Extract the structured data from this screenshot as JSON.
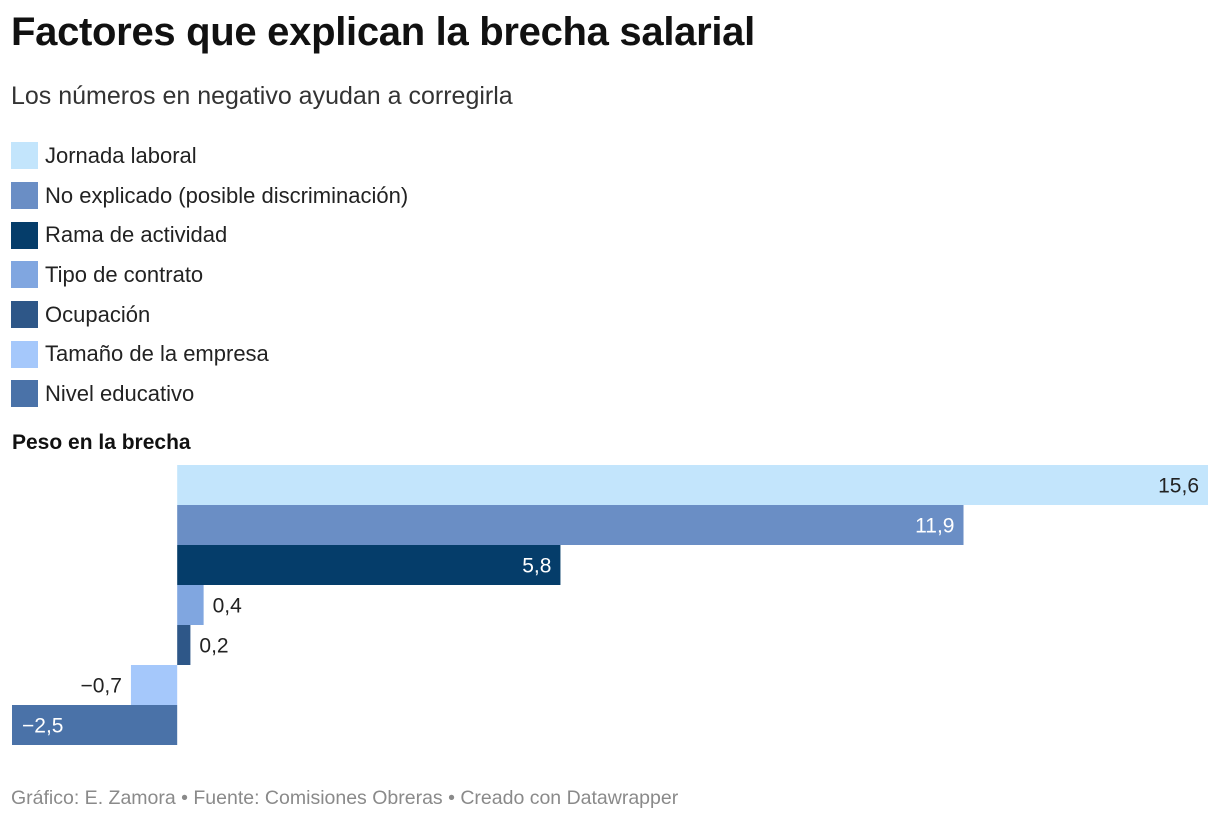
{
  "title": "Factores que explican la brecha salarial",
  "subtitle": "Los números en negativo ayudan a corregirla",
  "footer": {
    "credit": "Gráfico: E. Zamora",
    "separator": "•",
    "source": "Fuente: Comisiones Obreras",
    "created": "Creado con Datawrapper"
  },
  "chart_data": {
    "type": "bar",
    "orientation": "horizontal",
    "title": "Factores que explican la brecha salarial",
    "subtitle": "Los números en negativo ayudan a corregirla",
    "xlabel": "Peso en la brecha",
    "ylabel": "",
    "xlim": [
      -2.5,
      15.6
    ],
    "grid": false,
    "legend_position": "top-left",
    "categories": [
      "Jornada laboral",
      "No explicado (posible discriminación)",
      "Rama de actividad",
      "Tipo de contrato",
      "Ocupación",
      "Tamaño de la empresa",
      "Nivel educativo"
    ],
    "values": [
      15.6,
      11.9,
      5.8,
      0.4,
      0.2,
      -0.7,
      -2.5
    ],
    "value_labels": [
      "15,6",
      "11,9",
      "5,8",
      "0,4",
      "0,2",
      "−0,7",
      "−2,5"
    ],
    "colors": [
      "#c3e5fc",
      "#6a8ec5",
      "#053d6a",
      "#80a6e0",
      "#2e5788",
      "#a5c8fb",
      "#4a72a8"
    ]
  }
}
